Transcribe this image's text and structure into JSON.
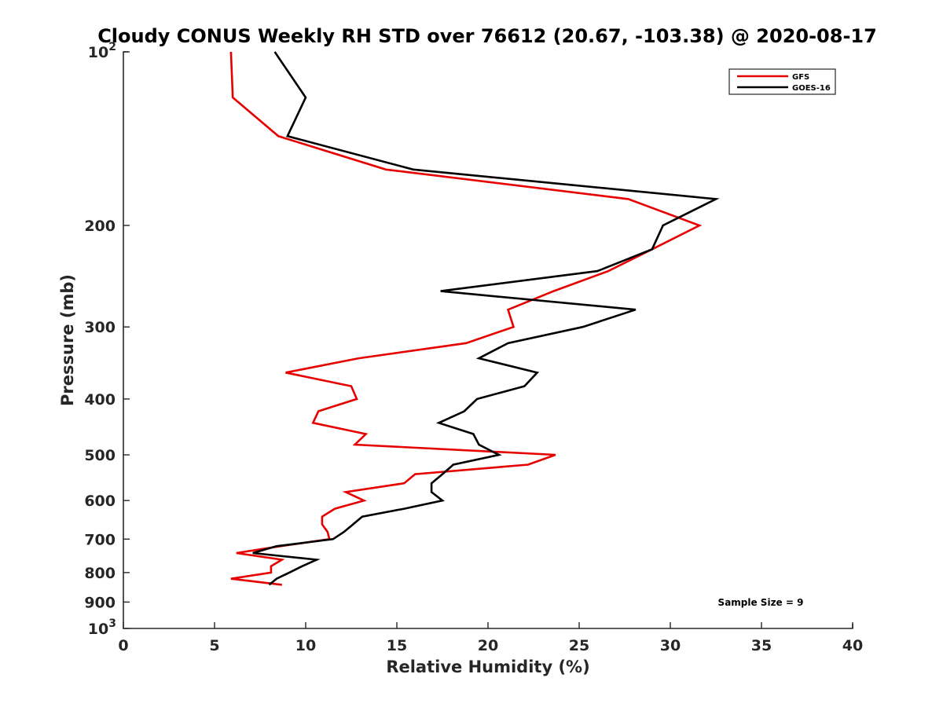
{
  "chart_data": {
    "type": "line",
    "title": "Cloudy CONUS Weekly RH STD over 76612 (20.67, -103.38) @ 2020-08-17",
    "xlabel": "Relative Humidity (%)",
    "ylabel": "Pressure (mb)",
    "xlim": [
      0,
      40
    ],
    "ylim": [
      100,
      1000
    ],
    "yscale": "log",
    "yreversed": true,
    "grid": false,
    "legend_position": "top-right",
    "x_ticks": [
      0,
      5,
      10,
      15,
      20,
      25,
      30,
      35,
      40
    ],
    "x_tick_labels": [
      "0",
      "5",
      "10",
      "15",
      "20",
      "25",
      "30",
      "35",
      "40"
    ],
    "y_ticks": [
      100,
      200,
      300,
      400,
      500,
      600,
      700,
      800,
      900,
      1000
    ],
    "y_tick_labels": [
      {
        "base": "10",
        "exp": "2"
      },
      {
        "base": "200",
        "exp": ""
      },
      {
        "base": "300",
        "exp": ""
      },
      {
        "base": "400",
        "exp": ""
      },
      {
        "base": "500",
        "exp": ""
      },
      {
        "base": "600",
        "exp": ""
      },
      {
        "base": "700",
        "exp": ""
      },
      {
        "base": "800",
        "exp": ""
      },
      {
        "base": "900",
        "exp": ""
      },
      {
        "base": "10",
        "exp": "3"
      }
    ],
    "pressure_levels": [
      100,
      120,
      140,
      160,
      180,
      200,
      220,
      240,
      260,
      280,
      300,
      320,
      340,
      360,
      380,
      400,
      420,
      440,
      460,
      480,
      500,
      520,
      540,
      560,
      580,
      600,
      620,
      640,
      660,
      680,
      700,
      720,
      740,
      760,
      780,
      800,
      820,
      840
    ],
    "series": [
      {
        "name": "GFS",
        "color": "#e60000",
        "values": [
          5.9,
          6.0,
          8.5,
          14.4,
          27.7,
          31.6,
          29.0,
          26.6,
          23.6,
          21.1,
          21.4,
          18.8,
          12.9,
          8.9,
          12.5,
          12.8,
          10.7,
          10.4,
          13.3,
          12.7,
          23.7,
          22.2,
          16.0,
          15.4,
          12.2,
          13.2,
          11.6,
          10.9,
          10.9,
          11.2,
          11.3,
          8.6,
          6.2,
          8.7,
          8.1,
          8.1,
          5.9,
          8.7
        ]
      },
      {
        "name": "GOES-16",
        "color": "#000000",
        "values": [
          8.3,
          10.0,
          9.0,
          15.9,
          32.5,
          29.6,
          29.0,
          26.0,
          17.4,
          28.1,
          25.2,
          21.1,
          19.5,
          22.7,
          22.0,
          19.4,
          18.7,
          17.3,
          19.2,
          19.5,
          20.6,
          18.1,
          17.5,
          16.9,
          16.9,
          17.5,
          15.4,
          13.1,
          12.6,
          12.1,
          11.5,
          8.4,
          7.1,
          10.6,
          9.8,
          9.1,
          8.4,
          8.0
        ]
      }
    ],
    "annotations": [
      {
        "text": "Sample Size = 9",
        "position": "bottom-right"
      }
    ]
  }
}
